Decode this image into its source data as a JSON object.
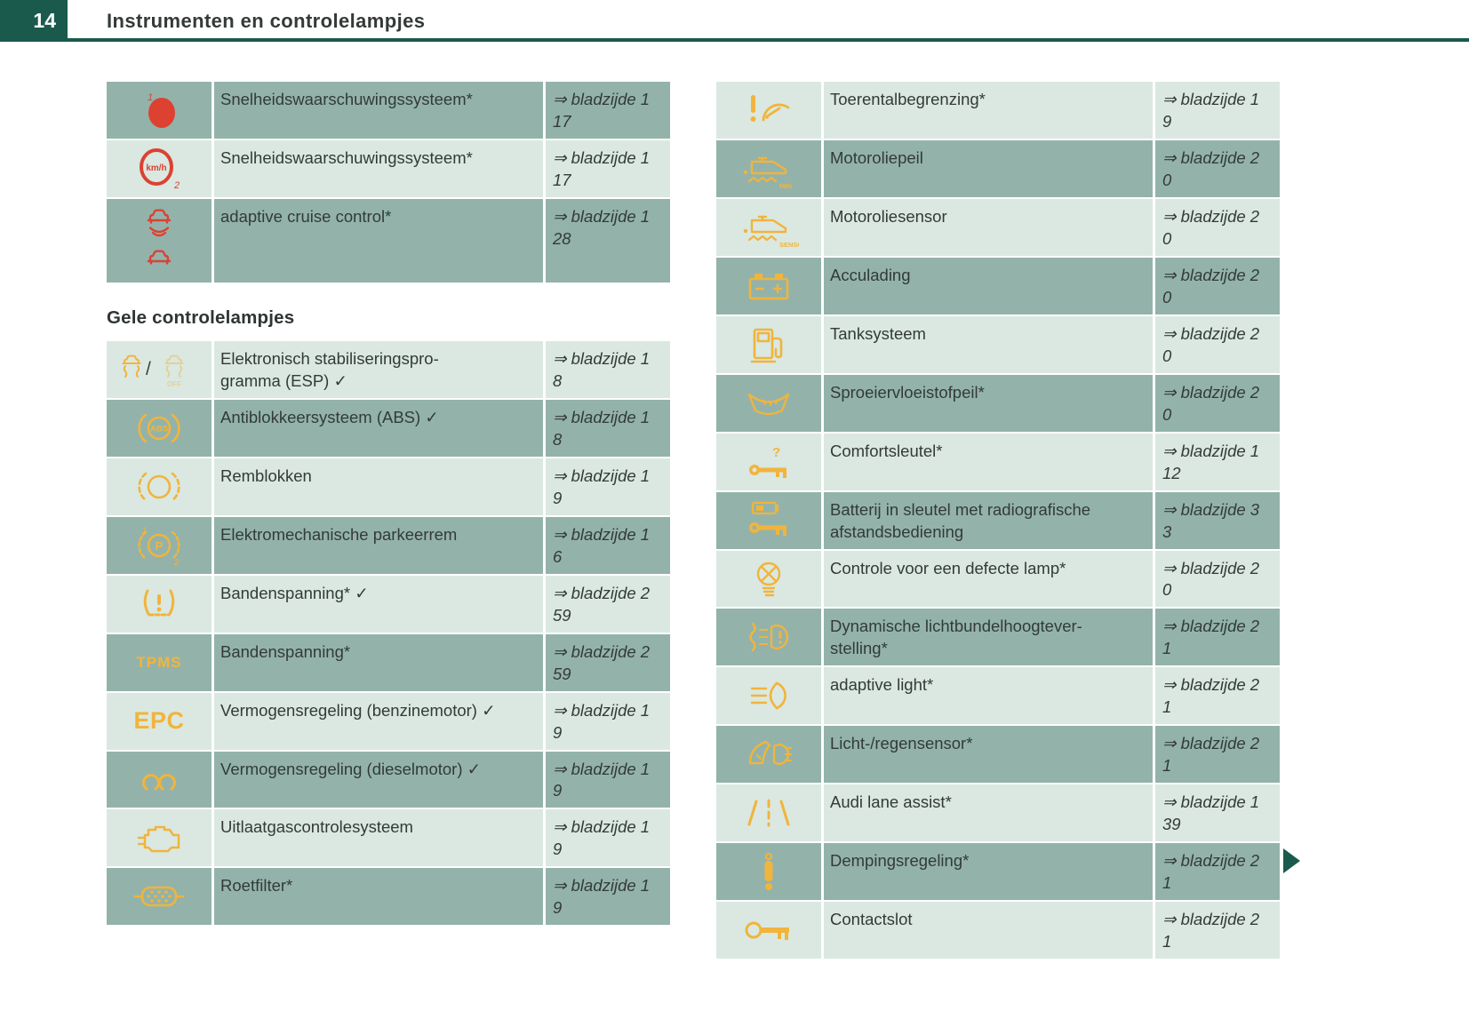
{
  "header": {
    "page_number": "14",
    "title": "Instrumenten en controlelampjes"
  },
  "colors": {
    "accent_teal": "#1A5A4D",
    "row_dark": "#93B3AA",
    "row_light": "#DAE8E1",
    "icon_yellow": "#F1B43C",
    "icon_red": "#DC4132",
    "text": "#333a38"
  },
  "left_column": {
    "red_table": {
      "rows": [
        {
          "icon": "speed-warning-1-icon",
          "desc": "Snelheidswaarschuwingssysteem*",
          "ref": "⇒ bladzijde 1\n17"
        },
        {
          "icon": "speed-warning-2-icon",
          "desc": "Snelheidswaarschuwingssysteem*",
          "ref": "⇒ bladzijde 1\n17"
        },
        {
          "icon": "adaptive-cruise-icon",
          "desc": "adaptive cruise control*",
          "ref": "⇒ bladzijde 1\n28"
        }
      ]
    },
    "section_heading": "Gele controlelampjes",
    "yellow_table": {
      "rows": [
        {
          "icon": "esp-esp-off-icon",
          "desc": "Elektronisch stabiliseringspro-\ngramma (ESP) ✓",
          "ref": "⇒ bladzijde 1\n8"
        },
        {
          "icon": "abs-icon",
          "desc": "Antiblokkeersysteem (ABS) ✓",
          "ref": "⇒ bladzijde 1\n8"
        },
        {
          "icon": "brake-pads-icon",
          "desc": "Remblokken",
          "ref": "⇒ bladzijde 1\n9"
        },
        {
          "icon": "parking-brake-icon",
          "desc": "Elektromechanische parkeerrem",
          "ref": "⇒ bladzijde 1\n6"
        },
        {
          "icon": "tire-pressure-icon",
          "desc": "Bandenspanning* ✓",
          "ref": "⇒ bladzijde 2\n59"
        },
        {
          "icon": "tpms-text-icon",
          "desc": "Bandenspanning*",
          "ref": "⇒ bladzijde 2\n59"
        },
        {
          "icon": "epc-text-icon",
          "desc": "Vermogensregeling (benzinemotor) ✓",
          "ref": "⇒ bladzijde 1\n9"
        },
        {
          "icon": "glow-plug-icon",
          "desc": "Vermogensregeling (dieselmotor) ✓",
          "ref": "⇒ bladzijde 1\n9"
        },
        {
          "icon": "engine-icon",
          "desc": "Uitlaatgascontrolesysteem",
          "ref": "⇒ bladzijde 1\n9"
        },
        {
          "icon": "particulate-filter-icon",
          "desc": "Roetfilter*",
          "ref": "⇒ bladzijde 1\n9"
        }
      ]
    }
  },
  "right_column": {
    "yellow_table": {
      "rows": [
        {
          "icon": "rev-limiter-icon",
          "desc": "Toerentalbegrenzing*",
          "ref": "⇒ bladzijde 1\n9"
        },
        {
          "icon": "oil-level-min-icon",
          "desc": "Motoroliepeil",
          "ref": "⇒ bladzijde 2\n0"
        },
        {
          "icon": "oil-sensor-icon",
          "desc": "Motoroliesensor",
          "ref": "⇒ bladzijde 2\n0"
        },
        {
          "icon": "battery-icon",
          "desc": "Acculading",
          "ref": "⇒ bladzijde 2\n0"
        },
        {
          "icon": "fuel-pump-icon",
          "desc": "Tanksysteem",
          "ref": "⇒ bladzijde 2\n0"
        },
        {
          "icon": "washer-fluid-icon",
          "desc": "Sproeiervloeistofpeil*",
          "ref": "⇒ bladzijde 2\n0"
        },
        {
          "icon": "comfort-key-icon",
          "desc": "Comfortsleutel*",
          "ref": "⇒ bladzijde 1\n12"
        },
        {
          "icon": "key-battery-icon",
          "desc": "Batterij in sleutel met radiografische\nafstandsbediening",
          "ref": "⇒ bladzijde 3\n3"
        },
        {
          "icon": "defective-lamp-icon",
          "desc": "Controle voor een defecte lamp*",
          "ref": "⇒ bladzijde 2\n0"
        },
        {
          "icon": "headlight-range-icon",
          "desc": "Dynamische lichtbundelhoogtever-\nstelling*",
          "ref": "⇒ bladzijde 2\n1"
        },
        {
          "icon": "adaptive-light-icon",
          "desc": "adaptive light*",
          "ref": "⇒ bladzijde 2\n1"
        },
        {
          "icon": "light-rain-sensor-icon",
          "desc": "Licht-/regensensor*",
          "ref": "⇒ bladzijde 2\n1"
        },
        {
          "icon": "lane-assist-icon",
          "desc": "Audi lane assist*",
          "ref": "⇒ bladzijde 1\n39"
        },
        {
          "icon": "damping-icon",
          "desc": "Dempingsregeling*",
          "ref": "⇒ bladzijde 2\n1"
        },
        {
          "icon": "ignition-lock-icon",
          "desc": "Contactslot",
          "ref": "⇒ bladzijde 2\n1"
        }
      ]
    }
  }
}
